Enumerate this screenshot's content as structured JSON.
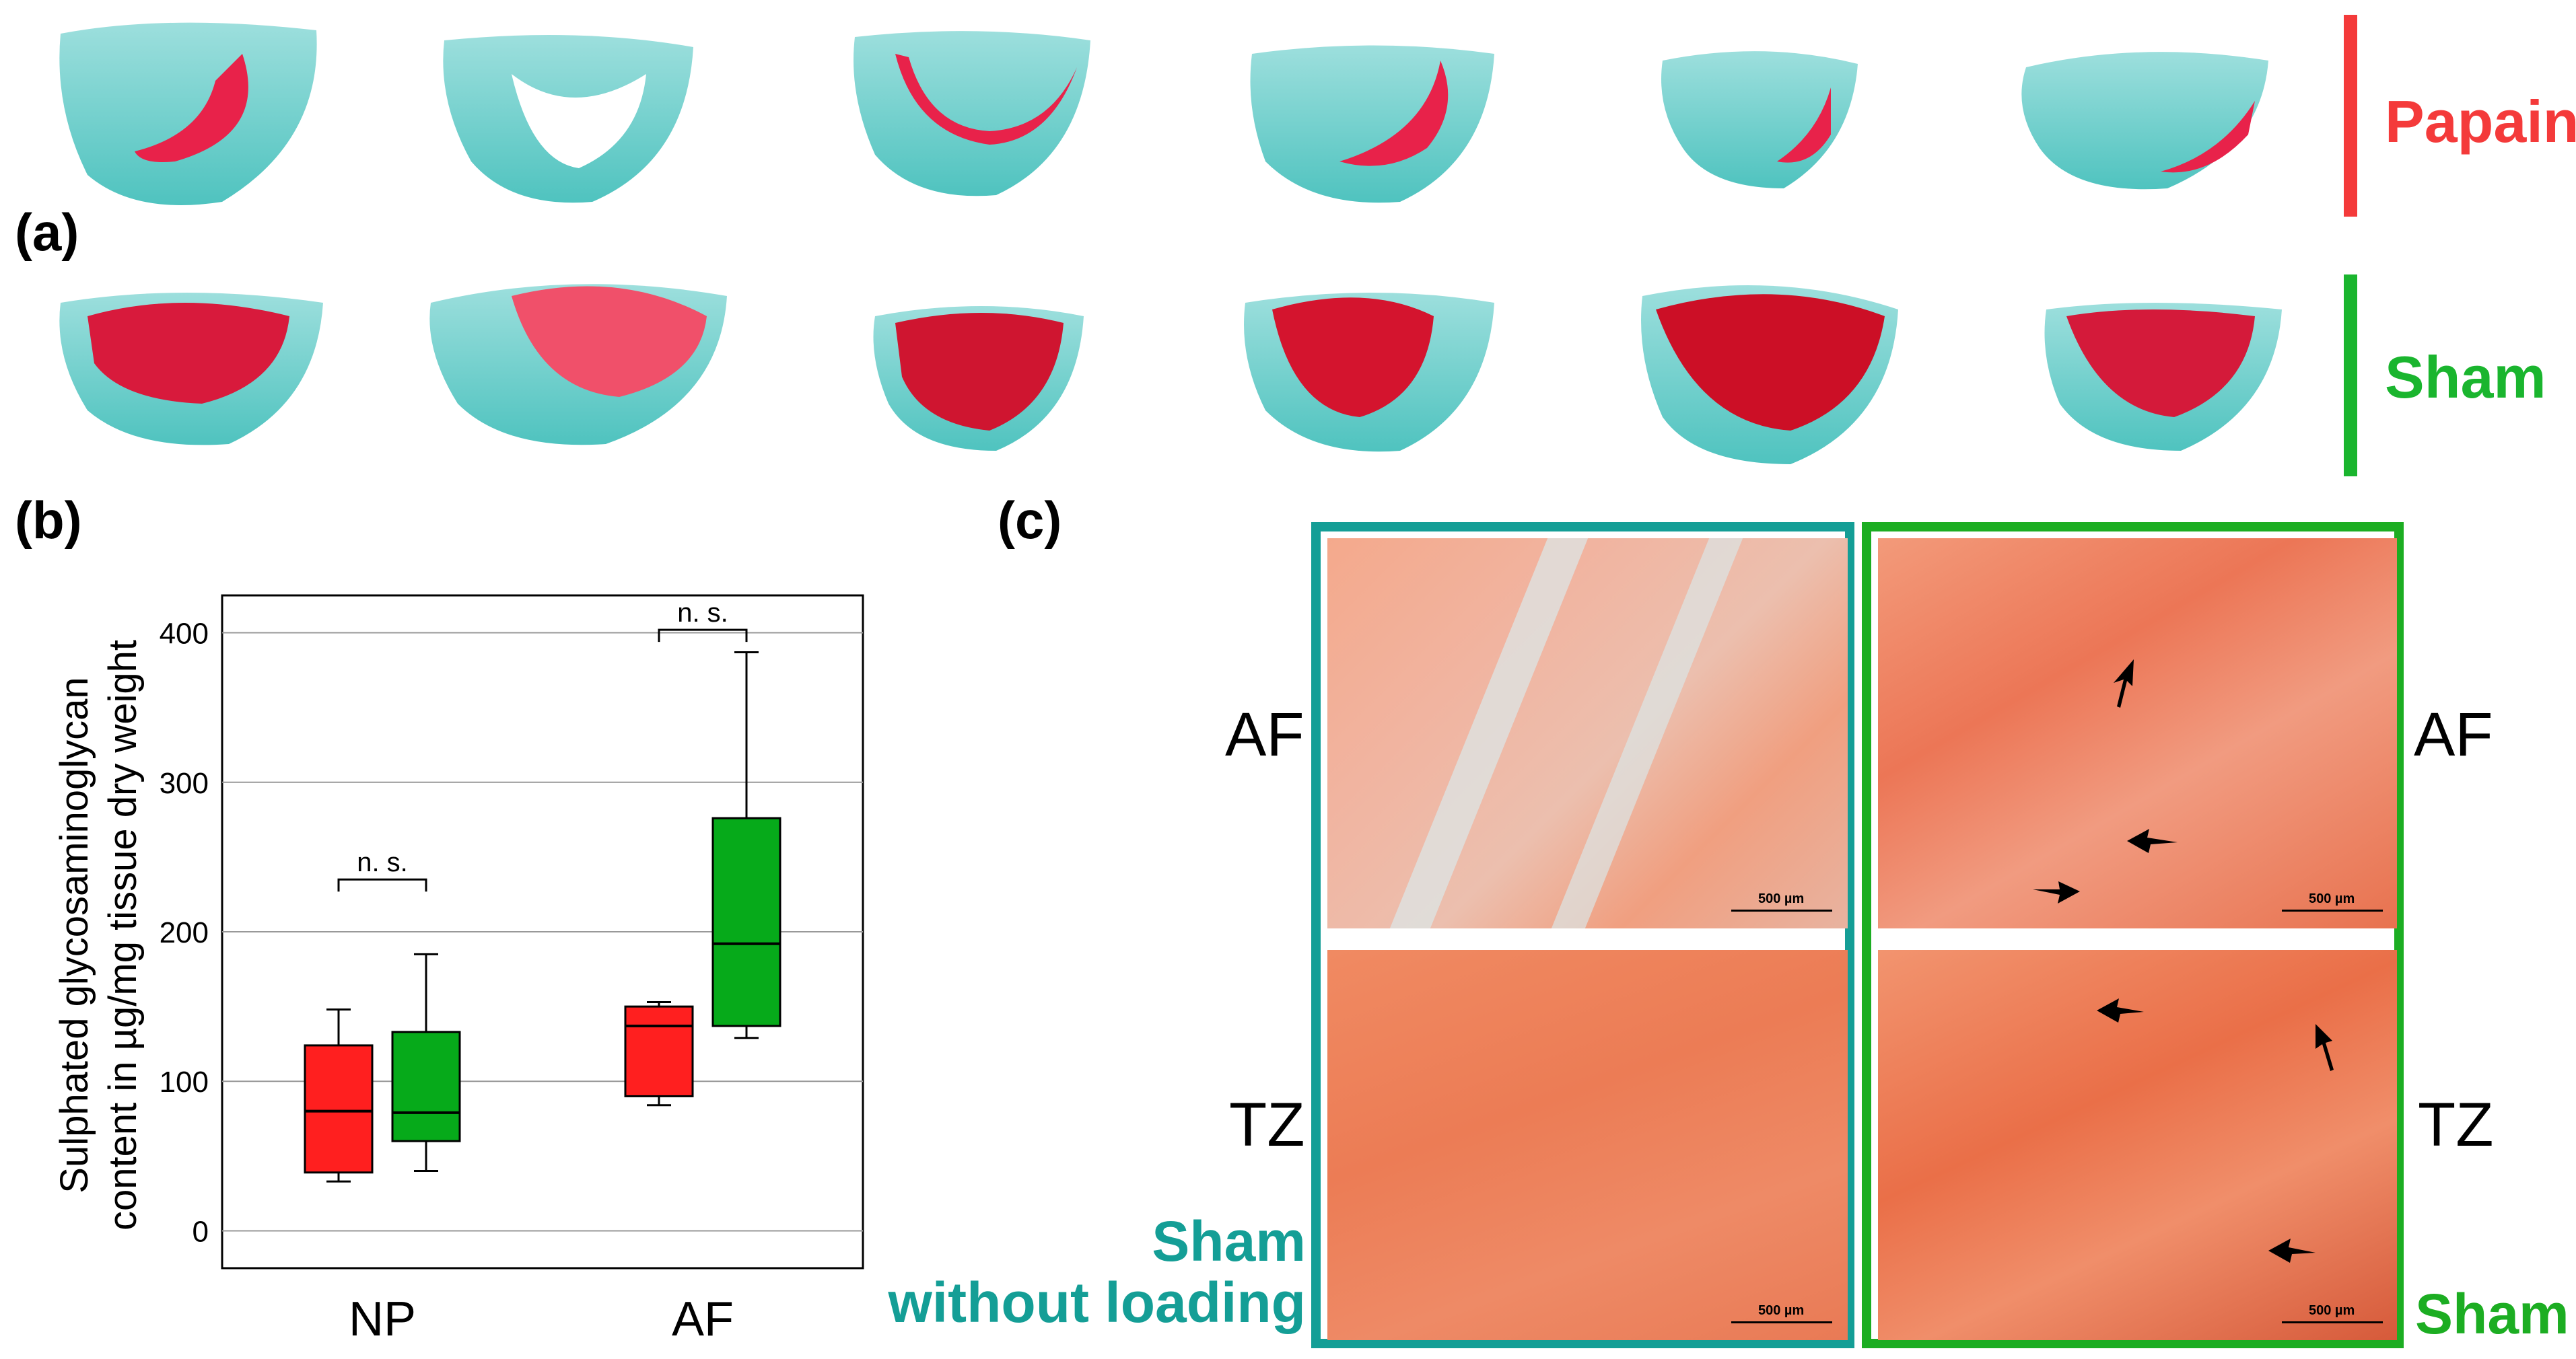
{
  "panel_a": {
    "label": "(a)",
    "rows": [
      {
        "name": "Papain",
        "color": "#f43a3a"
      },
      {
        "name": "Sham",
        "color": "#1ab52e"
      }
    ]
  },
  "panel_b": {
    "label": "(b)",
    "colors": {
      "papain": "#ff1f1f",
      "sham": "#06aa1a"
    }
  },
  "panel_c": {
    "label": "(c)",
    "left_frame_color": "#149e96",
    "right_frame_color": "#1cad22",
    "rows": [
      "AF",
      "TZ"
    ],
    "left_caption_line1": "Sham",
    "left_caption_line2": "without loading",
    "right_caption": "Sham",
    "scale_bar": "500 µm"
  },
  "chart_data": {
    "type": "box",
    "title": "",
    "xlabel": "",
    "ylabel": "Sulphated glycosaminoglycan content in µg/mg tissue dry weight",
    "ylabel_line1": "Sulphated glycosaminoglycan",
    "ylabel_line2": "content in µg/mg tissue dry weight",
    "ylim": [
      -25,
      425
    ],
    "yticks": [
      0,
      100,
      200,
      300,
      400
    ],
    "grid": true,
    "categories": [
      "NP",
      "AF"
    ],
    "series": [
      {
        "name": "Papain",
        "color": "#ff1f1f",
        "boxes": [
          {
            "min": 33,
            "q1": 39,
            "median": 80,
            "q3": 124,
            "max": 148
          },
          {
            "min": 84,
            "q1": 90,
            "median": 137,
            "q3": 150,
            "max": 153
          }
        ]
      },
      {
        "name": "Sham",
        "color": "#06aa1a",
        "boxes": [
          {
            "min": 40,
            "q1": 60,
            "median": 79,
            "q3": 133,
            "max": 185
          },
          {
            "min": 129,
            "q1": 137,
            "median": 192,
            "q3": 276,
            "max": 387
          }
        ]
      }
    ],
    "annotations": [
      {
        "text": "n. s.",
        "category": "NP",
        "y": 235
      },
      {
        "text": "n. s.",
        "category": "AF",
        "y": 402
      }
    ]
  }
}
